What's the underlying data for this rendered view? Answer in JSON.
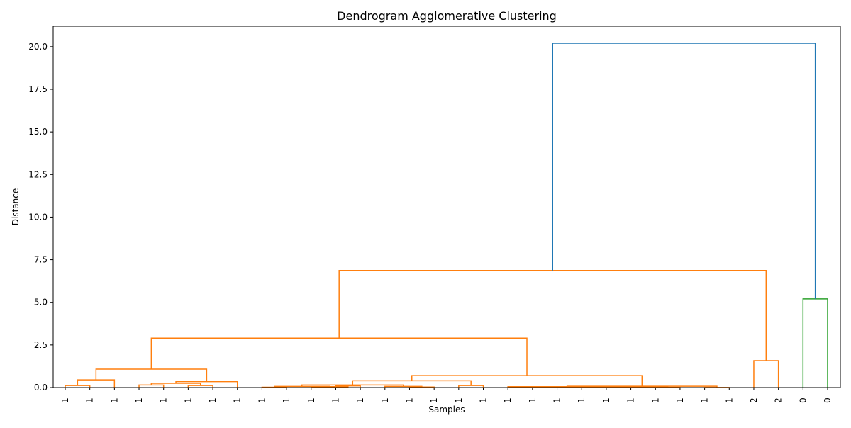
{
  "chart_data": {
    "type": "dendrogram",
    "title": "Dendrogram Agglomerative Clustering",
    "xlabel": "Samples",
    "ylabel": "Distance",
    "ylim": [
      0,
      21.2
    ],
    "y_ticks": [
      "0.0",
      "2.5",
      "5.0",
      "7.5",
      "10.0",
      "12.5",
      "15.0",
      "17.5",
      "20.0"
    ],
    "y_tick_values": [
      0,
      2.5,
      5,
      7.5,
      10,
      12.5,
      15,
      17.5,
      20
    ],
    "leaf_labels": [
      "1",
      "1",
      "1",
      "1",
      "1",
      "1",
      "1",
      "1",
      "1",
      "1",
      "1",
      "1",
      "1",
      "1",
      "1",
      "1",
      "1",
      "1",
      "1",
      "1",
      "1",
      "1",
      "1",
      "1",
      "1",
      "1",
      "1",
      "1",
      "2",
      "2",
      "0",
      "0"
    ],
    "colors": {
      "cluster_1": "#ff7f0e",
      "cluster_0": "#2ca02c",
      "root": "#1f77b4"
    },
    "links": [
      {
        "x": [
          1,
          1,
          2,
          2
        ],
        "y": [
          0,
          0.12,
          0.12,
          0
        ],
        "color": "#ff7f0e"
      },
      {
        "x": [
          1.5,
          1.5,
          3,
          3
        ],
        "y": [
          0.12,
          0.45,
          0.45,
          0
        ],
        "color": "#ff7f0e"
      },
      {
        "x": [
          4,
          4,
          5,
          5
        ],
        "y": [
          0,
          0.15,
          0.15,
          0
        ],
        "color": "#ff7f0e"
      },
      {
        "x": [
          6,
          6,
          7,
          7
        ],
        "y": [
          0,
          0.12,
          0.12,
          0
        ],
        "color": "#ff7f0e"
      },
      {
        "x": [
          4.5,
          4.5,
          6.5,
          6.5
        ],
        "y": [
          0.15,
          0.25,
          0.25,
          0.12
        ],
        "color": "#ff7f0e"
      },
      {
        "x": [
          5.5,
          5.5,
          8,
          8
        ],
        "y": [
          0.25,
          0.35,
          0.35,
          0
        ],
        "color": "#ff7f0e"
      },
      {
        "x": [
          2.25,
          2.25,
          6.75,
          6.75
        ],
        "y": [
          0.45,
          1.08,
          1.08,
          0.35
        ],
        "color": "#ff7f0e"
      },
      {
        "x": [
          9,
          9,
          10,
          10
        ],
        "y": [
          0,
          0.02,
          0.02,
          0
        ],
        "color": "#ff7f0e"
      },
      {
        "x": [
          12,
          12,
          13,
          13
        ],
        "y": [
          0,
          0.1,
          0.1,
          0
        ],
        "color": "#ff7f0e"
      },
      {
        "x": [
          11,
          11,
          12.5,
          12.5
        ],
        "y": [
          0,
          0.05,
          0.05,
          0.1
        ],
        "color": "#ff7f0e"
      },
      {
        "x": [
          9.5,
          9.5,
          11.75,
          11.75
        ],
        "y": [
          0.02,
          0.07,
          0.07,
          0.05
        ],
        "color": "#ff7f0e"
      },
      {
        "x": [
          15,
          15,
          16,
          16
        ],
        "y": [
          0,
          0.03,
          0.03,
          0
        ],
        "color": "#ff7f0e"
      },
      {
        "x": [
          14,
          14,
          15.5,
          15.5
        ],
        "y": [
          0,
          0.07,
          0.07,
          0.03
        ],
        "color": "#ff7f0e"
      },
      {
        "x": [
          10.625,
          10.625,
          14.75,
          14.75
        ],
        "y": [
          0.07,
          0.15,
          0.15,
          0.07
        ],
        "color": "#ff7f0e"
      },
      {
        "x": [
          17,
          17,
          18,
          18
        ],
        "y": [
          0,
          0.12,
          0.12,
          0
        ],
        "color": "#ff7f0e"
      },
      {
        "x": [
          12.6875,
          12.6875,
          17.5,
          17.5
        ],
        "y": [
          0.15,
          0.4,
          0.4,
          0.12
        ],
        "color": "#ff7f0e"
      },
      {
        "x": [
          21,
          21,
          22,
          22
        ],
        "y": [
          0,
          0.005,
          0.005,
          0
        ],
        "color": "#ff7f0e"
      },
      {
        "x": [
          20,
          20,
          21.5,
          21.5
        ],
        "y": [
          0,
          0.01,
          0.01,
          0.005
        ],
        "color": "#ff7f0e"
      },
      {
        "x": [
          23,
          23,
          24,
          24
        ],
        "y": [
          0,
          0.005,
          0.005,
          0
        ],
        "color": "#ff7f0e"
      },
      {
        "x": [
          20.75,
          20.75,
          23.5,
          23.5
        ],
        "y": [
          0.01,
          0.015,
          0.015,
          0.005
        ],
        "color": "#ff7f0e"
      },
      {
        "x": [
          25,
          25,
          26,
          26
        ],
        "y": [
          0,
          0.01,
          0.01,
          0
        ],
        "color": "#ff7f0e"
      },
      {
        "x": [
          22.125,
          22.125,
          25.5,
          25.5
        ],
        "y": [
          0.015,
          0.03,
          0.03,
          0.01
        ],
        "color": "#ff7f0e"
      },
      {
        "x": [
          19,
          19,
          23.8125,
          23.8125
        ],
        "y": [
          0,
          0.05,
          0.05,
          0.03
        ],
        "color": "#ff7f0e"
      },
      {
        "x": [
          27,
          27,
          28,
          28
        ],
        "y": [
          0,
          0.005,
          0.005,
          0
        ],
        "color": "#ff7f0e"
      },
      {
        "x": [
          21.40625,
          21.40625,
          27.5,
          27.5
        ],
        "y": [
          0.05,
          0.08,
          0.08,
          0.005
        ],
        "color": "#ff7f0e"
      },
      {
        "x": [
          15.09375,
          15.09375,
          24.453125,
          24.453125
        ],
        "y": [
          0.4,
          0.7,
          0.7,
          0.08
        ],
        "color": "#ff7f0e"
      },
      {
        "x": [
          4.5,
          4.5,
          19.7734375,
          19.7734375
        ],
        "y": [
          1.08,
          2.9,
          2.9,
          0.7
        ],
        "color": "#ff7f0e"
      },
      {
        "x": [
          29,
          29,
          30,
          30
        ],
        "y": [
          0,
          1.58,
          1.58,
          0
        ],
        "color": "#ff7f0e"
      },
      {
        "x": [
          12.13671875,
          12.13671875,
          29.5,
          29.5
        ],
        "y": [
          2.9,
          6.87,
          6.87,
          1.58
        ],
        "color": "#ff7f0e"
      },
      {
        "x": [
          31,
          31,
          32,
          32
        ],
        "y": [
          0,
          5.2,
          5.2,
          0
        ],
        "color": "#2ca02c"
      },
      {
        "x": [
          20.818359375,
          20.818359375,
          31.5,
          31.5
        ],
        "y": [
          6.87,
          20.2,
          20.2,
          5.2
        ],
        "color": "#1f77b4"
      }
    ]
  }
}
